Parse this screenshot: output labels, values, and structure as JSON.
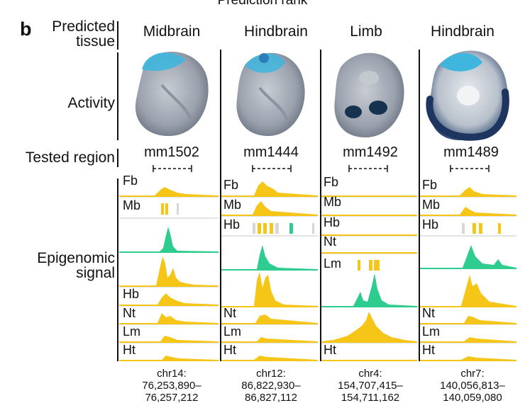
{
  "rank_header": "Prediction rank",
  "panel_letter": "b",
  "row_labels": {
    "predicted_line1": "Predicted",
    "predicted_line2": "tissue",
    "activity": "Activity",
    "tested_region": "Tested region",
    "epigenomic_line1": "Epigenomic",
    "epigenomic_line2": "signal"
  },
  "columns": [
    {
      "tissue": "Midbrain",
      "region": "mm1502",
      "chr": "chr14:",
      "start": "76,253,890–",
      "end": "76,257,212",
      "tracks": [
        "Fb",
        "Mb",
        "",
        "",
        "Hb",
        "Nt",
        "Lm",
        "Ht"
      ]
    },
    {
      "tissue": "Hindbrain",
      "region": "mm1444",
      "chr": "chr12:",
      "start": "86,822,930–",
      "end": "86,827,112",
      "tracks": [
        "Fb",
        "Mb",
        "Hb",
        "",
        "",
        "Nt",
        "Lm",
        "Ht"
      ]
    },
    {
      "tissue": "Limb",
      "region": "mm1492",
      "chr": "chr4:",
      "start": "154,707,415–",
      "end": "154,711,162",
      "tracks": [
        "Fb",
        "Mb",
        "Hb",
        "Nt",
        "Lm",
        "",
        "",
        "Ht"
      ]
    },
    {
      "tissue": "Hindbrain",
      "region": "mm1489",
      "chr": "chr7:",
      "start": "140,056,813–",
      "end": "140,059,080",
      "tracks": [
        "Fb",
        "Mb",
        "Hb",
        "",
        "",
        "Nt",
        "Lm",
        "Ht"
      ]
    }
  ],
  "colors": {
    "yellow": "#f5c518",
    "green": "#2ecc8e",
    "gray": "#d6d6d6",
    "stain": "#3fb6dd",
    "embryo": "#9aa1ad"
  }
}
